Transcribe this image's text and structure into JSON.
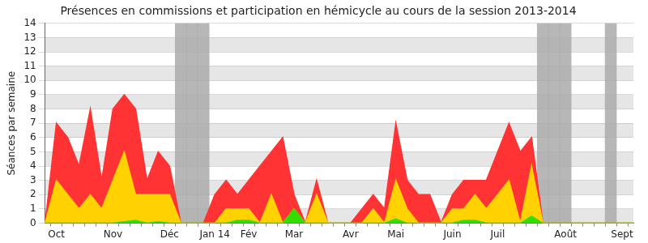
{
  "chart_data": {
    "type": "area",
    "title": "Présences en commissions et participation en hémicycle au cours de la session 2013-2014",
    "y_label": "Séances par semaine",
    "categories": [
      null,
      "Oct",
      null,
      null,
      null,
      null,
      "Nov",
      null,
      null,
      null,
      null,
      "Déc",
      null,
      null,
      null,
      "Jan 14",
      null,
      null,
      "Fév",
      null,
      null,
      null,
      "Mar",
      null,
      null,
      null,
      null,
      "Avr",
      null,
      null,
      null,
      "Mai",
      null,
      null,
      null,
      null,
      "Juin",
      null,
      null,
      null,
      "Juil",
      null,
      null,
      null,
      null,
      null,
      "Août",
      null,
      null,
      null,
      null,
      "Sept",
      null
    ],
    "series": [
      {
        "type": "bar",
        "color": "#aaaaaa",
        "values": [
          null,
          null,
          null,
          null,
          null,
          null,
          null,
          null,
          null,
          null,
          null,
          null,
          14,
          14,
          14,
          null,
          null,
          null,
          null,
          null,
          null,
          null,
          null,
          null,
          null,
          null,
          null,
          null,
          null,
          null,
          null,
          null,
          null,
          null,
          null,
          null,
          null,
          null,
          null,
          null,
          null,
          null,
          null,
          null,
          14,
          14,
          14,
          null,
          null,
          null,
          14,
          null,
          null
        ]
      },
      {
        "type": "area",
        "color": "#ff3333",
        "values": [
          0,
          7,
          6,
          4,
          8,
          3,
          8,
          9,
          8,
          3,
          5,
          4,
          0,
          0,
          0,
          2,
          3,
          2,
          3,
          4,
          5,
          6,
          2,
          0,
          3,
          0,
          0,
          0,
          1,
          2,
          1,
          7,
          3,
          2,
          2,
          0,
          2,
          3,
          3,
          3,
          5,
          7,
          5,
          6,
          0,
          0,
          0,
          0,
          0,
          0,
          0,
          0,
          0
        ]
      },
      {
        "type": "area",
        "color": "#ffd200",
        "values": [
          0,
          3,
          2,
          1,
          2,
          1,
          3,
          5,
          2,
          2,
          2,
          2,
          0,
          0,
          0,
          0,
          1,
          1,
          1,
          0,
          2,
          0,
          1,
          0,
          2,
          0,
          0,
          0,
          0,
          1,
          0,
          3,
          1,
          0,
          0,
          0,
          1,
          1,
          2,
          1,
          2,
          3,
          0,
          4,
          0,
          0,
          0,
          0,
          0,
          0,
          0,
          0,
          0
        ]
      },
      {
        "type": "area",
        "color": "#33dd00",
        "values": [
          0,
          0,
          0,
          0,
          0,
          0,
          0,
          0.1,
          0.2,
          0,
          0.1,
          0,
          0,
          0,
          0,
          0,
          0,
          0.2,
          0.2,
          0,
          0,
          0,
          1,
          0,
          0,
          0,
          0,
          0,
          0,
          0,
          0,
          0.3,
          0,
          0,
          0,
          0,
          0,
          0.2,
          0.2,
          0,
          0,
          0,
          0,
          0.5,
          0,
          0,
          0,
          0,
          0,
          0,
          0,
          0,
          0
        ]
      }
    ],
    "ylim": [
      0,
      14
    ],
    "yticks": [
      0,
      1,
      2,
      3,
      4,
      5,
      6,
      7,
      8,
      9,
      10,
      11,
      12,
      13,
      14
    ],
    "grid": true
  }
}
